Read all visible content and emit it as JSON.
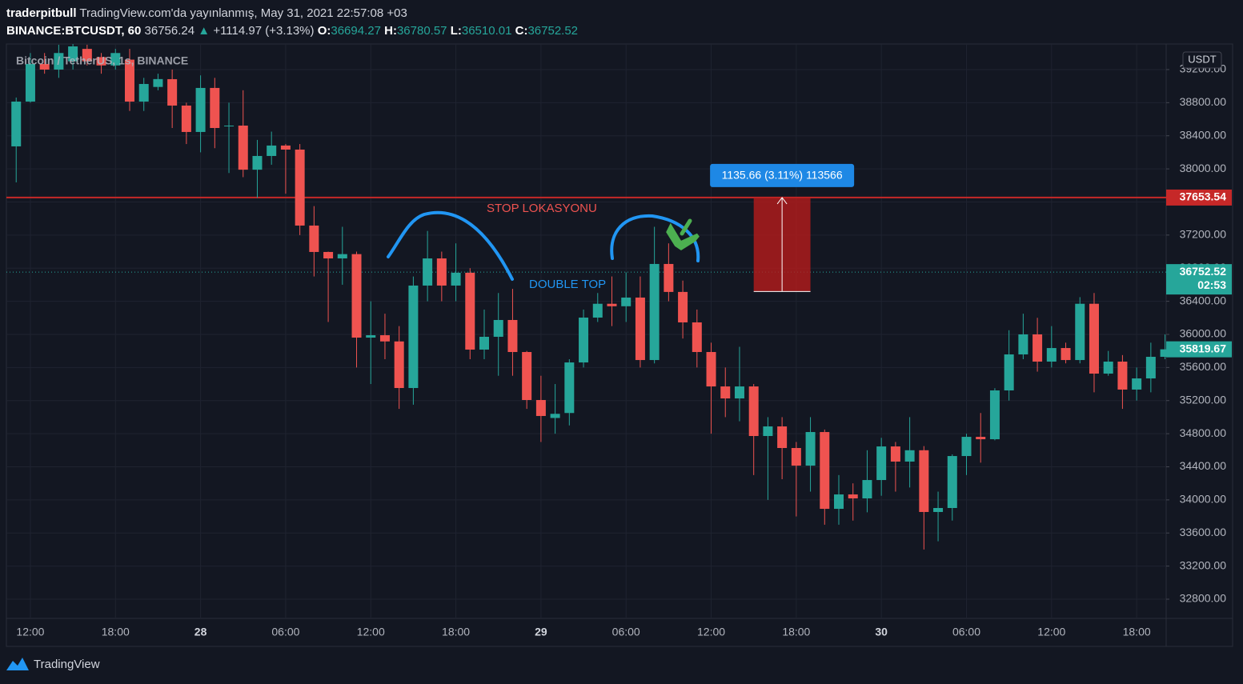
{
  "header": {
    "user": "traderpitbull",
    "published": "TradingView.com'da yayınlanmış, May 31, 2021 22:57:08 +03",
    "symbol": "BINANCE:BTCUSDT, 60",
    "last": "36756.24",
    "arrow": "▲",
    "change": "+1114.97 (+3.13%)",
    "o_label": "O:",
    "o": "36694.27",
    "h_label": "H:",
    "h": "36780.57",
    "l_label": "L:",
    "l": "36510.01",
    "c_label": "C:",
    "c": "36752.52"
  },
  "footer": {
    "brand": "TradingView"
  },
  "chart_data": {
    "type": "candlestick",
    "legend": "Bitcoin / TetherUS, 1s, BINANCE",
    "currency": "USDT",
    "up_color": "#26a69a",
    "down_color": "#ef5350",
    "grid": true,
    "x": [
      -1,
      0,
      1,
      2,
      3,
      4,
      5,
      6,
      7,
      8,
      9,
      10,
      11,
      12,
      13,
      14,
      15,
      16,
      17,
      18,
      19,
      20,
      21,
      22,
      23,
      24,
      25,
      26,
      27,
      28,
      29,
      30,
      31,
      32,
      33,
      34,
      35,
      36,
      37,
      38,
      39,
      40,
      41,
      42,
      43,
      44,
      45,
      46,
      47,
      48,
      49,
      50,
      51,
      52,
      53,
      54,
      55,
      56,
      57,
      58,
      59,
      60,
      61,
      62,
      63,
      64,
      65,
      66,
      67,
      68,
      69,
      70,
      71,
      72,
      73,
      74,
      75,
      76,
      77,
      78,
      79,
      80
    ],
    "open": [
      38272,
      38813,
      39268,
      39200,
      39300,
      39450,
      39350,
      39250,
      39320,
      38813,
      38990,
      39084,
      38765,
      38446,
      38978,
      38520,
      38523,
      37990,
      38156,
      38282,
      38233,
      37315,
      36996,
      36918,
      36970,
      35961,
      35990,
      35915,
      35352,
      36590,
      36918,
      36590,
      36745,
      35816,
      35971,
      36174,
      35787,
      35207,
      34990,
      35050,
      35661,
      36203,
      36370,
      36340,
      36445,
      35690,
      36851,
      36513,
      36145,
      35787,
      35371,
      35226,
      35371,
      34772,
      34888,
      34627,
      34414,
      34820,
      33892,
      34066,
      34018,
      34240,
      34646,
      34463,
      34600,
      33854,
      33902,
      34530,
      34762,
      34733,
      35323,
      35758,
      36000,
      35671,
      35835,
      35690,
      36370,
      35526,
      35671,
      35333,
      35468,
      35729
    ],
    "high": [
      38862,
      39400,
      39400,
      39500,
      39509,
      39500,
      39400,
      39450,
      39450,
      39100,
      39150,
      39200,
      38800,
      39130,
      39100,
      38800,
      38950,
      38350,
      38450,
      38300,
      38300,
      37550,
      37000,
      37300,
      37000,
      36400,
      36250,
      36100,
      36700,
      37250,
      37000,
      37100,
      36800,
      36300,
      36500,
      36550,
      35800,
      35500,
      35400,
      35700,
      36300,
      36500,
      36700,
      36750,
      36700,
      37300,
      37100,
      36650,
      36300,
      35900,
      35600,
      35850,
      35400,
      35000,
      35000,
      34700,
      35000,
      34850,
      34300,
      34200,
      34600,
      34750,
      34700,
      35000,
      34650,
      34100,
      34550,
      34800,
      35050,
      35350,
      36050,
      36250,
      36200,
      36100,
      35900,
      36450,
      36500,
      35800,
      35750,
      35600,
      35900,
      36000
    ],
    "low": [
      37837,
      38800,
      39150,
      39100,
      39200,
      39250,
      39150,
      39200,
      38700,
      38700,
      38950,
      38494,
      38300,
      38200,
      38250,
      37950,
      37900,
      37650,
      38050,
      37700,
      37200,
      36700,
      36150,
      36600,
      35600,
      35400,
      35700,
      35100,
      35150,
      36400,
      36400,
      36400,
      35700,
      35700,
      35500,
      35500,
      35100,
      34700,
      34800,
      34900,
      35600,
      36150,
      36100,
      36150,
      35600,
      35650,
      36400,
      35950,
      35600,
      34800,
      35000,
      34950,
      34300,
      34000,
      34250,
      33800,
      34100,
      33700,
      33700,
      33750,
      33850,
      34050,
      34100,
      34150,
      33400,
      33500,
      33750,
      34300,
      34450,
      34720,
      35200,
      35700,
      35550,
      35600,
      35650,
      35650,
      35300,
      35500,
      35100,
      35200,
      35300,
      35700
    ],
    "close": [
      38813,
      39268,
      39200,
      39400,
      39480,
      39300,
      39250,
      39400,
      38813,
      39026,
      39085,
      38765,
      38446,
      38978,
      38494,
      38523,
      37990,
      38156,
      38282,
      38233,
      37315,
      36996,
      36918,
      36970,
      35961,
      35990,
      35915,
      35352,
      36590,
      36918,
      36590,
      36745,
      35816,
      35971,
      36174,
      35787,
      35207,
      35014,
      35040,
      35661,
      36203,
      36370,
      36340,
      36445,
      35690,
      36851,
      36513,
      36145,
      35787,
      35371,
      35226,
      35371,
      34772,
      34888,
      34627,
      34414,
      34820,
      33892,
      34066,
      34018,
      34240,
      34646,
      34463,
      34600,
      33854,
      33902,
      34530,
      34762,
      34733,
      35323,
      35758,
      36000,
      35671,
      35835,
      35690,
      36370,
      35526,
      35671,
      35333,
      35468,
      35729,
      35819.67
    ],
    "xlim": [
      -1.69,
      80.08
    ],
    "xticks": [
      {
        "value": 0,
        "label": "12:00"
      },
      {
        "value": 6,
        "label": "18:00"
      },
      {
        "value": 12,
        "label": "28"
      },
      {
        "value": 18,
        "label": "06:00"
      },
      {
        "value": 24,
        "label": "12:00"
      },
      {
        "value": 30,
        "label": "18:00"
      },
      {
        "value": 36,
        "label": "29"
      },
      {
        "value": 42,
        "label": "06:00"
      },
      {
        "value": 48,
        "label": "12:00"
      },
      {
        "value": 54,
        "label": "18:00"
      },
      {
        "value": 60,
        "label": "30"
      },
      {
        "value": 66,
        "label": "06:00"
      },
      {
        "value": 72,
        "label": "12:00"
      },
      {
        "value": 78,
        "label": "18:00"
      }
    ],
    "ylim": [
      32568,
      39509
    ],
    "yticks": [
      {
        "value": 32800,
        "label": "32800.00"
      },
      {
        "value": 33200,
        "label": "33200.00"
      },
      {
        "value": 33600,
        "label": "33600.00"
      },
      {
        "value": 34000,
        "label": "34000.00"
      },
      {
        "value": 34400,
        "label": "34400.00"
      },
      {
        "value": 34800,
        "label": "34800.00"
      },
      {
        "value": 35200,
        "label": "35200.00"
      },
      {
        "value": 35600,
        "label": "35600.00"
      },
      {
        "value": 36000,
        "label": "36000.00"
      },
      {
        "value": 36400,
        "label": "36400.00"
      },
      {
        "value": 36800,
        "label": "36800.00"
      },
      {
        "value": 37200,
        "label": "37200.00"
      },
      {
        "value": 37600,
        "label": "37600.00"
      },
      {
        "value": 38000,
        "label": "38000.00"
      },
      {
        "value": 38400,
        "label": "38400.00"
      },
      {
        "value": 38800,
        "label": "38800.00"
      },
      {
        "value": 39200,
        "label": "39200.00"
      }
    ],
    "stop_line": 37653.54,
    "stop_color": "#c62828",
    "last_price": 36752.52,
    "countdown": "02:53",
    "measure": {
      "from": 37653.54,
      "to": 36517.88,
      "x_start": 51,
      "x_end": 55,
      "label": "1135.66 (3.11%) 113566"
    },
    "annotations": [
      "STOP LOKASYONU",
      "DOUBLE TOP"
    ]
  }
}
